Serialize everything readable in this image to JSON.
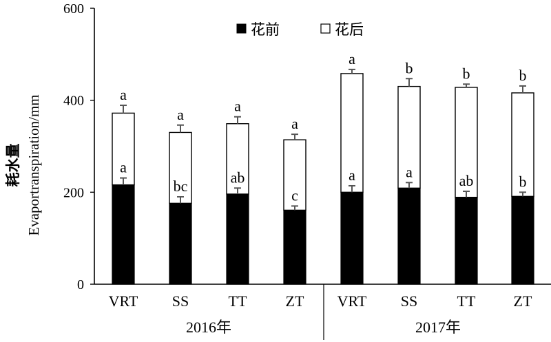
{
  "chart_data": {
    "type": "bar",
    "stacked": true,
    "categories": [
      "VRT",
      "SS",
      "TT",
      "ZT",
      "VRT",
      "SS",
      "TT",
      "ZT"
    ],
    "groups": [
      {
        "label": "2016年",
        "category_indices": [
          0,
          1,
          2,
          3
        ]
      },
      {
        "label": "2017年",
        "category_indices": [
          4,
          5,
          6,
          7
        ]
      }
    ],
    "series": [
      {
        "name": "花前",
        "color": "#000000",
        "values": [
          216,
          176,
          196,
          161,
          200,
          209,
          189,
          191
        ],
        "errors": [
          15,
          14,
          13,
          9,
          14,
          12,
          13,
          9
        ],
        "letters": [
          "a",
          "bc",
          "ab",
          "c",
          "a",
          "a",
          "ab",
          "b"
        ]
      },
      {
        "name": "花后",
        "color": "#ffffff",
        "values": [
          156,
          154,
          153,
          153,
          258,
          221,
          239,
          225
        ],
        "errors": [
          17,
          16,
          15,
          12,
          9,
          17,
          7,
          15
        ],
        "letters": [
          "a",
          "a",
          "a",
          "a",
          "a",
          "b",
          "b",
          "b"
        ]
      }
    ],
    "ylabel_cn": "耗水量",
    "ylabel_en": "Evaportranspiration/mm",
    "ylim": [
      0,
      600
    ],
    "yticks": [
      "0",
      "200",
      "400",
      "600"
    ],
    "legend_position": "top-center",
    "grid": false
  }
}
